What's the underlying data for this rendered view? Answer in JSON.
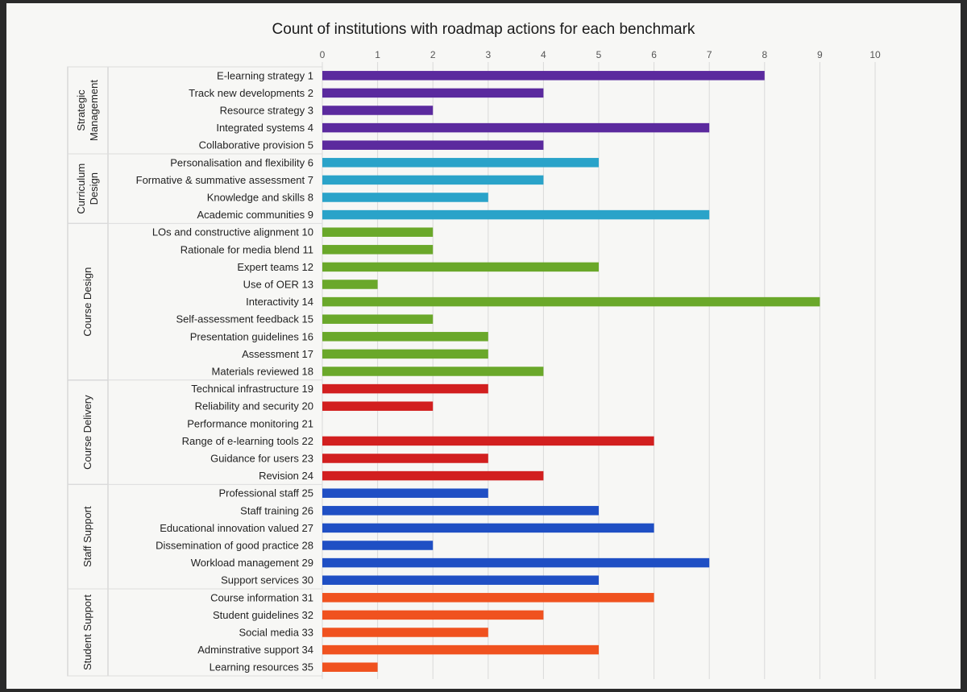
{
  "chart_data": {
    "type": "bar",
    "orientation": "horizontal",
    "title": "Count of institutions with roadmap actions for each benchmark",
    "xlim": [
      0,
      10
    ],
    "xticks": [
      0,
      1,
      2,
      3,
      4,
      5,
      6,
      7,
      8,
      9,
      10
    ],
    "grid": true,
    "groups": [
      {
        "name": "Strategic Management",
        "name_lines": [
          "Strategic",
          "Management"
        ],
        "color": "#5b2a9e",
        "items": [
          {
            "label": "E-learning strategy  1",
            "value": 8
          },
          {
            "label": "Track new developments  2",
            "value": 4
          },
          {
            "label": "Resource strategy  3",
            "value": 2
          },
          {
            "label": "Integrated systems  4",
            "value": 7
          },
          {
            "label": "Collaborative provision  5",
            "value": 4
          }
        ]
      },
      {
        "name": "Curriculum Design",
        "name_lines": [
          "Curriculum",
          "Design"
        ],
        "color": "#2aa3c9",
        "items": [
          {
            "label": "Personalisation and flexibility  6",
            "value": 5
          },
          {
            "label": "Formative & summative assessment  7",
            "value": 4
          },
          {
            "label": "Knowledge and skills  8",
            "value": 3
          },
          {
            "label": "Academic communities  9",
            "value": 7
          }
        ]
      },
      {
        "name": "Course Design",
        "name_lines": [
          "Course Design"
        ],
        "color": "#6aa82a",
        "items": [
          {
            "label": "LOs and constructive alignment 10",
            "value": 2
          },
          {
            "label": "Rationale for media blend 11",
            "value": 2
          },
          {
            "label": "Expert teams 12",
            "value": 5
          },
          {
            "label": "Use of OER 13",
            "value": 1
          },
          {
            "label": "Interactivity 14",
            "value": 9
          },
          {
            "label": "Self-assessment feedback 15",
            "value": 2
          },
          {
            "label": "Presentation guidelines 16",
            "value": 3
          },
          {
            "label": "Assessment 17",
            "value": 3
          },
          {
            "label": "Materials reviewed 18",
            "value": 4
          }
        ]
      },
      {
        "name": "Course Delivery",
        "name_lines": [
          "Course Delivery"
        ],
        "color": "#d21f1f",
        "items": [
          {
            "label": "Technical infrastructure 19",
            "value": 3
          },
          {
            "label": "Reliability and security 20",
            "value": 2
          },
          {
            "label": "Performance monitoring 21",
            "value": 0
          },
          {
            "label": "Range of e-learning tools 22",
            "value": 6
          },
          {
            "label": "Guidance for users 23",
            "value": 3
          },
          {
            "label": "Revision 24",
            "value": 4
          }
        ]
      },
      {
        "name": "Staff Support",
        "name_lines": [
          "Staff Support"
        ],
        "color": "#1f4fc4",
        "items": [
          {
            "label": "Professional staff 25",
            "value": 3
          },
          {
            "label": "Staff training 26",
            "value": 5
          },
          {
            "label": "Educational innovation valued 27",
            "value": 6
          },
          {
            "label": "Dissemination of good practice 28",
            "value": 2
          },
          {
            "label": "Workload management 29",
            "value": 7
          },
          {
            "label": "Support services 30",
            "value": 5
          }
        ]
      },
      {
        "name": "Student Support",
        "name_lines": [
          "Student Support"
        ],
        "color": "#f0521f",
        "items": [
          {
            "label": "Course information 31",
            "value": 6
          },
          {
            "label": "Student guidelines 32",
            "value": 4
          },
          {
            "label": "Social media 33",
            "value": 3
          },
          {
            "label": "Adminstrative support 34",
            "value": 5
          },
          {
            "label": "Learning resources 35",
            "value": 1
          }
        ]
      }
    ]
  }
}
